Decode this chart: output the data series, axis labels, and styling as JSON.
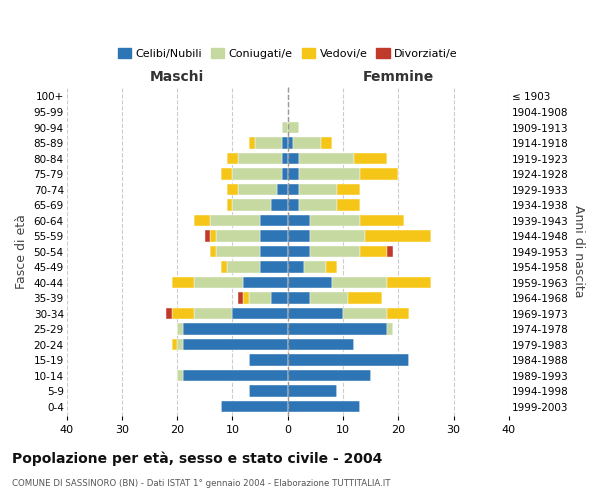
{
  "age_groups": [
    "0-4",
    "5-9",
    "10-14",
    "15-19",
    "20-24",
    "25-29",
    "30-34",
    "35-39",
    "40-44",
    "45-49",
    "50-54",
    "55-59",
    "60-64",
    "65-69",
    "70-74",
    "75-79",
    "80-84",
    "85-89",
    "90-94",
    "95-99",
    "100+"
  ],
  "birth_years": [
    "1999-2003",
    "1994-1998",
    "1989-1993",
    "1984-1988",
    "1979-1983",
    "1974-1978",
    "1969-1973",
    "1964-1968",
    "1959-1963",
    "1954-1958",
    "1949-1953",
    "1944-1948",
    "1939-1943",
    "1934-1938",
    "1929-1933",
    "1924-1928",
    "1919-1923",
    "1914-1918",
    "1909-1913",
    "1904-1908",
    "≤ 1903"
  ],
  "male": {
    "celibi": [
      12,
      7,
      19,
      7,
      19,
      19,
      10,
      3,
      8,
      5,
      5,
      5,
      5,
      3,
      2,
      1,
      1,
      1,
      0,
      0,
      0
    ],
    "coniugati": [
      0,
      0,
      1,
      0,
      1,
      1,
      7,
      4,
      9,
      6,
      8,
      8,
      9,
      7,
      7,
      9,
      8,
      5,
      1,
      0,
      0
    ],
    "vedovi": [
      0,
      0,
      0,
      0,
      1,
      0,
      4,
      1,
      4,
      1,
      1,
      1,
      3,
      1,
      2,
      2,
      2,
      1,
      0,
      0,
      0
    ],
    "divorziati": [
      0,
      0,
      0,
      0,
      0,
      0,
      1,
      1,
      0,
      0,
      0,
      1,
      0,
      0,
      0,
      0,
      0,
      0,
      0,
      0,
      0
    ]
  },
  "female": {
    "nubili": [
      13,
      9,
      15,
      22,
      12,
      18,
      10,
      4,
      8,
      3,
      4,
      4,
      4,
      2,
      2,
      2,
      2,
      1,
      0,
      0,
      0
    ],
    "coniugate": [
      0,
      0,
      0,
      0,
      0,
      1,
      8,
      7,
      10,
      4,
      9,
      10,
      9,
      7,
      7,
      11,
      10,
      5,
      2,
      0,
      0
    ],
    "vedove": [
      0,
      0,
      0,
      0,
      0,
      0,
      4,
      6,
      8,
      2,
      5,
      12,
      8,
      4,
      4,
      7,
      6,
      2,
      0,
      0,
      0
    ],
    "divorziate": [
      0,
      0,
      0,
      0,
      0,
      0,
      0,
      0,
      0,
      0,
      1,
      0,
      0,
      0,
      0,
      0,
      0,
      0,
      0,
      0,
      0
    ]
  },
  "colors": {
    "celibi_nubili": "#2E75B6",
    "coniugati": "#C5D9A0",
    "vedovi": "#F5C518",
    "divorziati": "#C0392B"
  },
  "xlim": 40,
  "title": "Popolazione per età, sesso e stato civile - 2004",
  "subtitle": "COMUNE DI SASSINORO (BN) - Dati ISTAT 1° gennaio 2004 - Elaborazione TUTTITALIA.IT",
  "ylabel": "Fasce di età",
  "right_ylabel": "Anni di nascita",
  "legend_labels": [
    "Celibi/Nubili",
    "Coniugati/e",
    "Vedovi/e",
    "Divorziati/e"
  ],
  "maschi_label": "Maschi",
  "femmine_label": "Femmine",
  "background_color": "#ffffff",
  "grid_color": "#cccccc"
}
